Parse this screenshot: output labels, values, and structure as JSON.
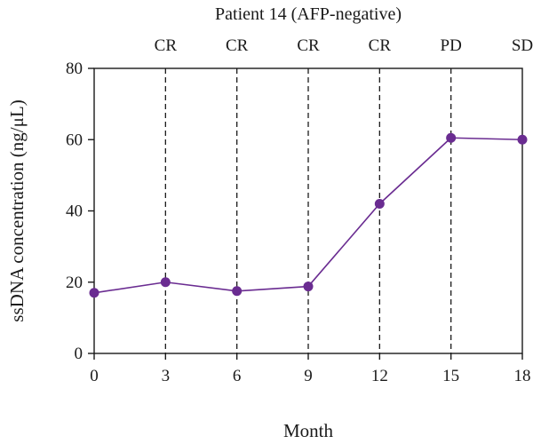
{
  "chart_data": {
    "type": "line",
    "title": "Patient 14 (AFP-negative)",
    "xlabel": "Month",
    "ylabel": "ssDNA concentration (ng/μL)",
    "xlim": [
      0,
      18
    ],
    "ylim": [
      0,
      80
    ],
    "x_ticks": [
      0,
      3,
      6,
      9,
      12,
      15,
      18
    ],
    "y_ticks": [
      0,
      20,
      40,
      60,
      80
    ],
    "grid": false,
    "series": [
      {
        "x": [
          0,
          3,
          6,
          9,
          12,
          15,
          18
        ],
        "y": [
          17,
          20,
          17.5,
          18.8,
          42,
          60.5,
          60
        ],
        "color": "#6a2c91"
      }
    ],
    "annotations": [
      {
        "x": 3,
        "label": "CR"
      },
      {
        "x": 6,
        "label": "CR"
      },
      {
        "x": 9,
        "label": "CR"
      },
      {
        "x": 12,
        "label": "CR"
      },
      {
        "x": 15,
        "label": "PD"
      },
      {
        "x": 18,
        "label": "SD"
      }
    ]
  }
}
